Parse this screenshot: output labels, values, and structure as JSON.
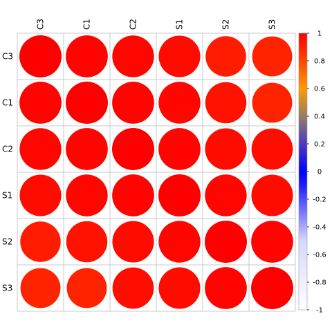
{
  "chart_data": {
    "type": "heatmap",
    "title": "",
    "columns": [
      "C3",
      "C1",
      "C2",
      "S1",
      "S2",
      "S3"
    ],
    "rows": [
      "C3",
      "C1",
      "C2",
      "S1",
      "S2",
      "S3"
    ],
    "values": [
      [
        1.0,
        0.99,
        0.98,
        0.97,
        0.92,
        0.9
      ],
      [
        0.99,
        1.0,
        0.99,
        0.98,
        0.95,
        0.9
      ],
      [
        0.98,
        0.99,
        1.0,
        0.99,
        0.97,
        0.96
      ],
      [
        0.97,
        0.98,
        0.99,
        1.0,
        0.98,
        0.97
      ],
      [
        0.92,
        0.95,
        0.97,
        0.98,
        1.0,
        0.99
      ],
      [
        0.9,
        0.9,
        0.96,
        0.97,
        0.99,
        1.0
      ]
    ],
    "colorbar": {
      "range": [
        -1,
        1
      ],
      "ticks": [
        "1",
        "0.8",
        "0.6",
        "0.4",
        "0.2",
        "0",
        "-0.2",
        "-0.4",
        "-0.6",
        "-0.8",
        "-1"
      ]
    },
    "colors": {
      "grid": "#c8c8c8",
      "high": "#ff0000"
    }
  }
}
